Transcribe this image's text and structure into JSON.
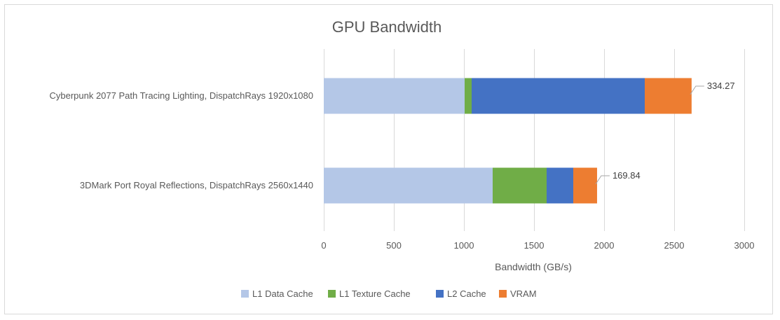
{
  "chart_data": {
    "type": "bar",
    "orientation": "horizontal",
    "stacked": true,
    "title": "GPU Bandwidth",
    "xlabel": "Bandwidth (GB/s)",
    "ylabel": "",
    "xlim": [
      0,
      3000
    ],
    "ticks": [
      "0",
      "500",
      "1000",
      "1500",
      "2000",
      "2500",
      "3000"
    ],
    "tick_values": [
      0,
      500,
      1000,
      1500,
      2000,
      2500,
      3000
    ],
    "grid": true,
    "legend_position": "bottom",
    "categories": [
      "Cyberpunk 2077 Path Tracing Lighting, DispatchRays 1920x1080",
      "3DMark Port Royal Reflections, DispatchRays 2560x1440"
    ],
    "series": [
      {
        "name": "L1 Data Cache",
        "color": "#b4c7e7",
        "values": [
          1005,
          1205
        ]
      },
      {
        "name": "L1 Texture Cache",
        "color": "#70ad47",
        "values": [
          50,
          385
        ]
      },
      {
        "name": "L2 Cache",
        "color": "#4472c4",
        "values": [
          1235,
          190
        ]
      },
      {
        "name": "VRAM",
        "color": "#ed7d31",
        "values": [
          334.27,
          169.84
        ]
      }
    ],
    "data_labels": [
      "334.27",
      "169.84"
    ]
  }
}
